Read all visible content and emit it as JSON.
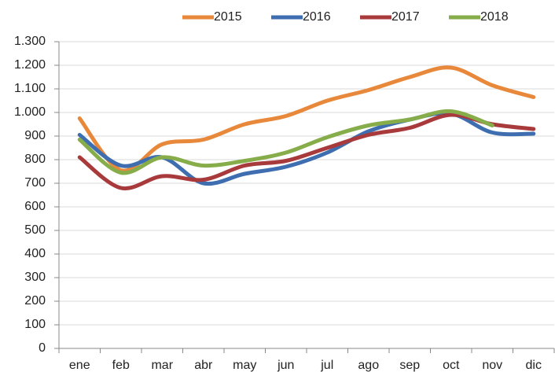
{
  "chart_data": {
    "type": "line",
    "categories": [
      "ene",
      "feb",
      "mar",
      "abr",
      "may",
      "jun",
      "jul",
      "ago",
      "sep",
      "oct",
      "nov",
      "dic"
    ],
    "series": [
      {
        "name": "2015",
        "color": "#e8883a",
        "values": [
          975,
          755,
          865,
          885,
          950,
          985,
          1050,
          1095,
          1150,
          1190,
          1115,
          1065
        ]
      },
      {
        "name": "2016",
        "color": "#3e6eb0",
        "values": [
          905,
          775,
          810,
          700,
          740,
          770,
          830,
          920,
          970,
          995,
          915,
          910
        ]
      },
      {
        "name": "2017",
        "color": "#a83a3c",
        "values": [
          810,
          680,
          730,
          715,
          775,
          795,
          850,
          905,
          935,
          990,
          950,
          930
        ]
      },
      {
        "name": "2018",
        "color": "#86ad4a",
        "values": [
          885,
          745,
          810,
          775,
          795,
          830,
          895,
          945,
          970,
          1005,
          945,
          null
        ]
      }
    ],
    "ylim": [
      0,
      1300
    ],
    "yticks": [
      0,
      100,
      200,
      300,
      400,
      500,
      600,
      700,
      800,
      900,
      {
        "value": 1000,
        "label": "1.000"
      },
      {
        "value": 1100,
        "label": "1.100"
      },
      {
        "value": 1200,
        "label": "1.200"
      },
      {
        "value": 1300,
        "label": "1.300"
      }
    ],
    "grid": true,
    "legend": "top"
  }
}
